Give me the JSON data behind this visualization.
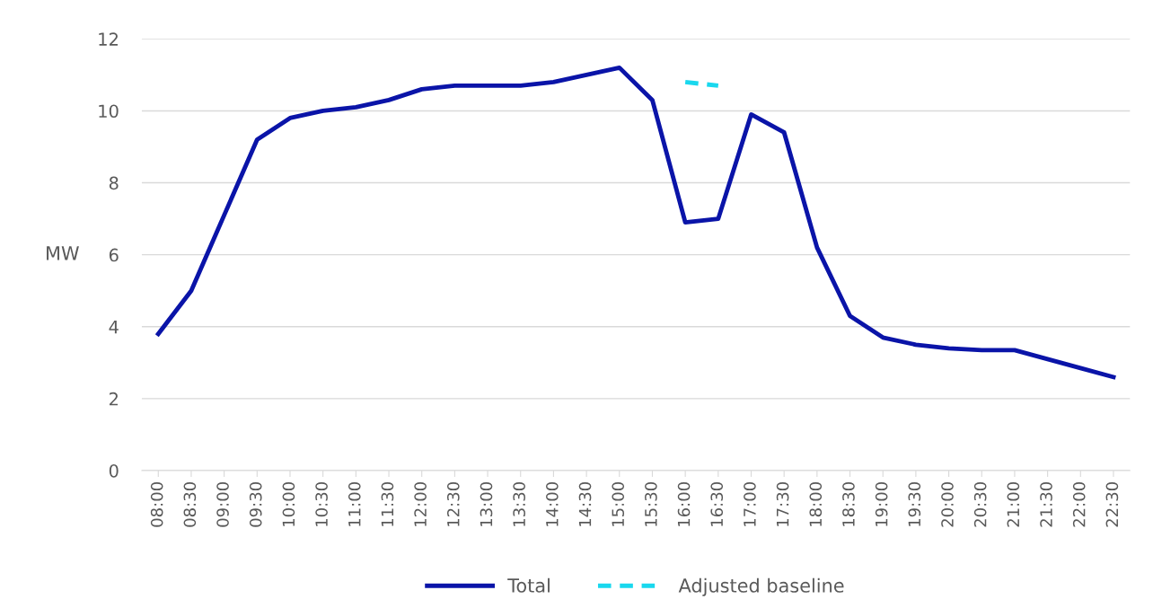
{
  "chart_data": {
    "type": "line",
    "ylabel": "MW",
    "categories": [
      "08:00",
      "08:30",
      "09:00",
      "09:30",
      "10:00",
      "10:30",
      "11:00",
      "11:30",
      "12:00",
      "12:30",
      "13:00",
      "13:30",
      "14:00",
      "14:30",
      "15:00",
      "15:30",
      "16:00",
      "16:30",
      "17:00",
      "17:30",
      "18:00",
      "18:30",
      "19:00",
      "19:30",
      "20:00",
      "20:30",
      "21:00",
      "21:30",
      "22:00",
      "22:30"
    ],
    "series": [
      {
        "name": "Total",
        "color": "#0a14a8",
        "line_style": "solid",
        "values": [
          3.8,
          5.0,
          7.1,
          9.2,
          9.8,
          10.0,
          10.1,
          10.3,
          10.6,
          10.7,
          10.7,
          10.7,
          10.8,
          11.0,
          11.2,
          10.3,
          6.9,
          7.0,
          9.9,
          9.4,
          6.2,
          4.3,
          3.7,
          3.5,
          3.4,
          3.35,
          3.35,
          3.1,
          2.85,
          2.6
        ]
      },
      {
        "name": "Adjusted baseline",
        "color": "#19d8ee",
        "line_style": "dashed",
        "values": [
          null,
          null,
          null,
          null,
          null,
          null,
          null,
          null,
          null,
          null,
          null,
          null,
          null,
          null,
          null,
          null,
          10.8,
          10.7,
          null,
          null,
          null,
          null,
          null,
          null,
          null,
          null,
          null,
          null,
          null,
          null
        ]
      }
    ],
    "ylim": [
      0,
      12
    ],
    "yticks": [
      0,
      2,
      4,
      6,
      8,
      10,
      12
    ],
    "grid": "y",
    "legend": "bottom",
    "marker": "none"
  }
}
